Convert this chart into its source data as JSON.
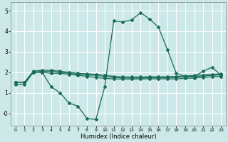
{
  "x": [
    0,
    1,
    2,
    3,
    4,
    5,
    6,
    7,
    8,
    9,
    10,
    11,
    12,
    13,
    14,
    15,
    16,
    17,
    18,
    19,
    20,
    21,
    22,
    23
  ],
  "line1": [
    1.4,
    1.4,
    2.0,
    2.0,
    1.3,
    1.0,
    0.5,
    0.35,
    -0.25,
    -0.3,
    1.3,
    4.5,
    4.45,
    4.55,
    4.9,
    4.6,
    4.2,
    3.1,
    1.95,
    1.8,
    1.8,
    2.05,
    2.25,
    1.85
  ],
  "line2": [
    1.5,
    1.5,
    2.0,
    2.0,
    1.95,
    1.95,
    1.9,
    1.85,
    1.8,
    1.75,
    1.7,
    1.68,
    1.67,
    1.67,
    1.68,
    1.68,
    1.68,
    1.68,
    1.68,
    1.7,
    1.72,
    1.75,
    1.78,
    1.8
  ],
  "line3": [
    1.5,
    1.5,
    2.0,
    2.05,
    2.05,
    2.0,
    1.95,
    1.9,
    1.87,
    1.85,
    1.8,
    1.75,
    1.72,
    1.72,
    1.72,
    1.73,
    1.73,
    1.73,
    1.75,
    1.77,
    1.79,
    1.82,
    1.85,
    1.88
  ],
  "line4": [
    1.5,
    1.5,
    2.05,
    2.1,
    2.1,
    2.05,
    2.0,
    1.95,
    1.92,
    1.9,
    1.85,
    1.8,
    1.77,
    1.77,
    1.77,
    1.78,
    1.78,
    1.78,
    1.8,
    1.82,
    1.84,
    1.87,
    1.9,
    1.92
  ],
  "line_color": "#1a6b5a",
  "bg_color": "#cce8e8",
  "grid_color": "#b8d8d8",
  "xlabel": "Humidex (Indice chaleur)",
  "ylim": [
    -0.6,
    5.4
  ],
  "xlim": [
    -0.5,
    23.5
  ],
  "yticks": [
    0,
    1,
    2,
    3,
    4,
    5
  ],
  "ytick_labels": [
    "-0",
    "1",
    "2",
    "3",
    "4",
    "5"
  ],
  "xticks": [
    0,
    1,
    2,
    3,
    4,
    5,
    6,
    7,
    8,
    9,
    10,
    11,
    12,
    13,
    14,
    15,
    16,
    17,
    18,
    19,
    20,
    21,
    22,
    23
  ],
  "marker": "D",
  "markersize": 2.0,
  "linewidth": 0.9
}
